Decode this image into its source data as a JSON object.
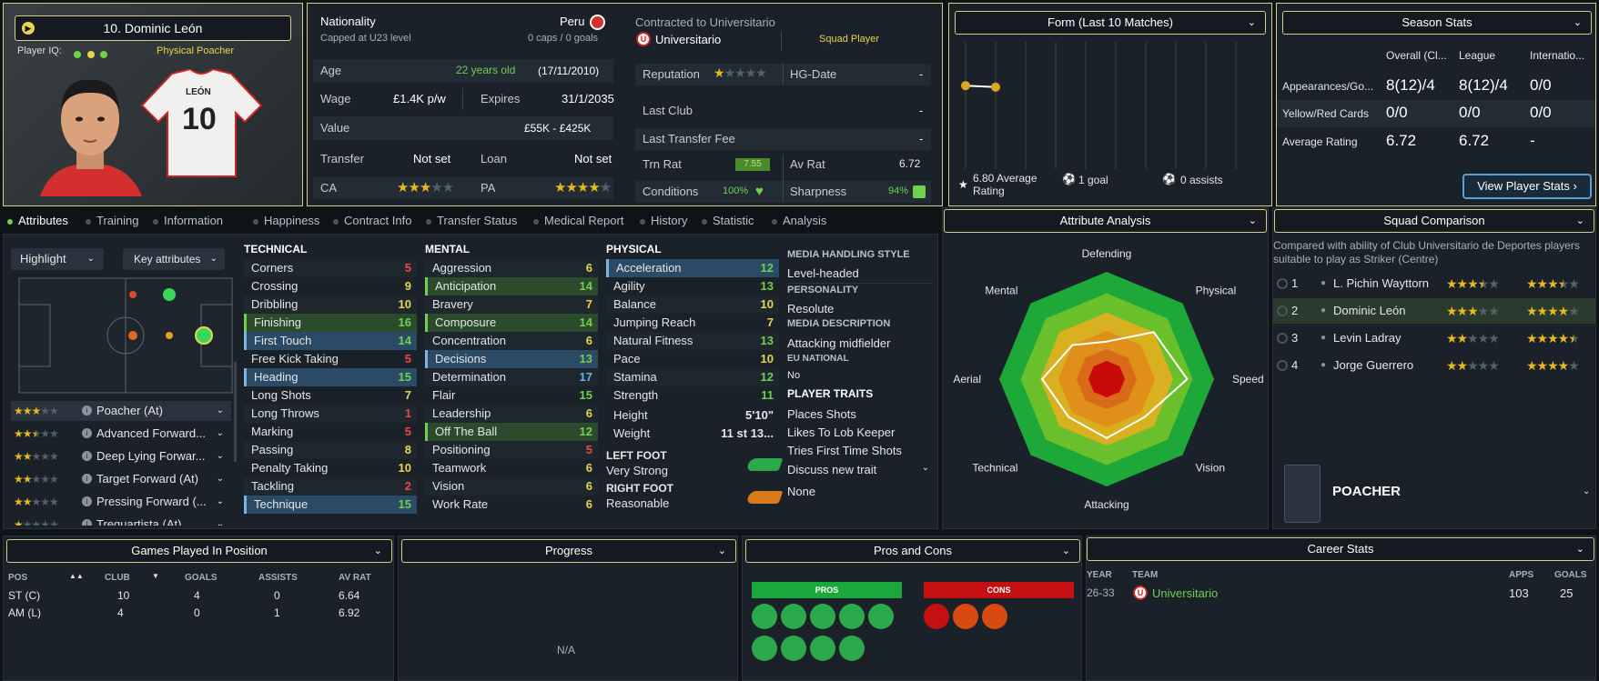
{
  "player": {
    "name": "10. Dominic León",
    "iq_label": "Player IQ:",
    "role_label": "Physical Poacher",
    "shirt_name": "LEÓN",
    "shirt_number": "10"
  },
  "info": {
    "nationality_label": "Nationality",
    "nationality": "Peru",
    "capped": "Capped at U23 level",
    "caps": "0 caps / 0 goals",
    "age_label": "Age",
    "age": "22 years old",
    "dob": "(17/11/2010)",
    "wage_label": "Wage",
    "wage": "£1.4K p/w",
    "expires_label": "Expires",
    "expires": "31/1/2035",
    "value_label": "Value",
    "value": "£55K - £425K",
    "transfer_label": "Transfer",
    "transfer": "Not set",
    "loan_label": "Loan",
    "loan": "Not set",
    "ca_label": "CA",
    "ca_stars": 3,
    "pa_label": "PA",
    "pa_stars": 4
  },
  "contract": {
    "contracted": "Contracted to Universitario",
    "club": "Universitario",
    "status": "Squad Player",
    "reputation_label": "Reputation",
    "reputation_stars": 1,
    "hg_label": "HG-Date",
    "hg": "-",
    "last_club_label": "Last Club",
    "last_club": "-",
    "last_fee_label": "Last Transfer Fee",
    "last_fee": "-",
    "trn_label": "Trn Rat",
    "trn": "7.55",
    "av_label": "Av Rat",
    "av": "6.72",
    "cond_label": "Conditions",
    "cond": "100%",
    "sharp_label": "Sharpness",
    "sharp": "94%"
  },
  "form": {
    "title": "Form (Last 10 Matches)",
    "avg": "6.80 Average Rating",
    "goals": "1 goal",
    "assists": "0 assists",
    "points": [
      6.9,
      6.8
    ]
  },
  "season": {
    "title": "Season Stats",
    "cols": [
      "Overall (Cl...",
      "League",
      "Internatio..."
    ],
    "rows": [
      {
        "label": "Appearances/Go...",
        "v": [
          "8(12)/4",
          "8(12)/4",
          "0/0"
        ]
      },
      {
        "label": "Yellow/Red Cards",
        "v": [
          "0/0",
          "0/0",
          "0/0"
        ]
      },
      {
        "label": "Average Rating",
        "v": [
          "6.72",
          "6.72",
          "-"
        ]
      }
    ],
    "button": "View Player Stats"
  },
  "tabs": [
    "Attributes",
    "Training",
    "Information",
    "Happiness",
    "Contract Info",
    "Transfer Status",
    "Medical Report",
    "History",
    "Statistic",
    "Analysis"
  ],
  "pitch": {
    "highlight": "Highlight",
    "key": "Key attributes"
  },
  "roles": [
    {
      "name": "Poacher (At)",
      "stars": 3
    },
    {
      "name": "Advanced Forward...",
      "stars": 2.5
    },
    {
      "name": "Deep Lying Forwar...",
      "stars": 2
    },
    {
      "name": "Target Forward (At)",
      "stars": 2
    },
    {
      "name": "Pressing Forward (...",
      "stars": 2
    },
    {
      "name": "Trequartista (At)",
      "stars": 1
    }
  ],
  "technical": {
    "title": "TECHNICAL",
    "items": [
      {
        "n": "Corners",
        "v": "5",
        "c": "#e84a4a"
      },
      {
        "n": "Crossing",
        "v": "9",
        "c": "#e8d44d"
      },
      {
        "n": "Dribbling",
        "v": "10",
        "c": "#e8d44d"
      },
      {
        "n": "Finishing",
        "v": "16",
        "c": "#6fd14f",
        "hl": "g"
      },
      {
        "n": "First Touch",
        "v": "14",
        "c": "#6fd14f",
        "hl": "b"
      },
      {
        "n": "Free Kick Taking",
        "v": "5",
        "c": "#e84a4a"
      },
      {
        "n": "Heading",
        "v": "15",
        "c": "#6fd14f",
        "hl": "b"
      },
      {
        "n": "Long Shots",
        "v": "7",
        "c": "#e8d44d"
      },
      {
        "n": "Long Throws",
        "v": "1",
        "c": "#e84a4a"
      },
      {
        "n": "Marking",
        "v": "5",
        "c": "#e84a4a"
      },
      {
        "n": "Passing",
        "v": "8",
        "c": "#e8d44d"
      },
      {
        "n": "Penalty Taking",
        "v": "10",
        "c": "#e8d44d"
      },
      {
        "n": "Tackling",
        "v": "2",
        "c": "#e84a4a"
      },
      {
        "n": "Technique",
        "v": "15",
        "c": "#6fd14f",
        "hl": "b"
      }
    ]
  },
  "mental": {
    "title": "MENTAL",
    "items": [
      {
        "n": "Aggression",
        "v": "6",
        "c": "#e8d44d"
      },
      {
        "n": "Anticipation",
        "v": "14",
        "c": "#6fd14f",
        "hl": "g"
      },
      {
        "n": "Bravery",
        "v": "7",
        "c": "#e8d44d"
      },
      {
        "n": "Composure",
        "v": "14",
        "c": "#6fd14f",
        "hl": "g"
      },
      {
        "n": "Concentration",
        "v": "6",
        "c": "#e8d44d"
      },
      {
        "n": "Decisions",
        "v": "13",
        "c": "#6fd14f",
        "hl": "b"
      },
      {
        "n": "Determination",
        "v": "17",
        "c": "#5ab8f0"
      },
      {
        "n": "Flair",
        "v": "15",
        "c": "#6fd14f"
      },
      {
        "n": "Leadership",
        "v": "6",
        "c": "#e8d44d"
      },
      {
        "n": "Off The Ball",
        "v": "12",
        "c": "#6fd14f",
        "hl": "g"
      },
      {
        "n": "Positioning",
        "v": "5",
        "c": "#e84a4a"
      },
      {
        "n": "Teamwork",
        "v": "6",
        "c": "#e8d44d"
      },
      {
        "n": "Vision",
        "v": "6",
        "c": "#e8d44d"
      },
      {
        "n": "Work Rate",
        "v": "6",
        "c": "#e8d44d"
      }
    ]
  },
  "physical": {
    "title": "PHYSICAL",
    "items": [
      {
        "n": "Acceleration",
        "v": "12",
        "c": "#6fd14f",
        "hl": "b"
      },
      {
        "n": "Agility",
        "v": "13",
        "c": "#6fd14f"
      },
      {
        "n": "Balance",
        "v": "10",
        "c": "#e8d44d"
      },
      {
        "n": "Jumping Reach",
        "v": "7",
        "c": "#e8d44d"
      },
      {
        "n": "Natural Fitness",
        "v": "13",
        "c": "#6fd14f"
      },
      {
        "n": "Pace",
        "v": "10",
        "c": "#e8d44d"
      },
      {
        "n": "Stamina",
        "v": "12",
        "c": "#6fd14f"
      },
      {
        "n": "Strength",
        "v": "11",
        "c": "#6fd14f"
      }
    ],
    "height_label": "Height",
    "height": "5'10\"",
    "weight_label": "Weight",
    "weight": "11 st 13...",
    "left_foot_label": "LEFT FOOT",
    "left_foot": "Very Strong",
    "right_foot_label": "RIGHT FOOT",
    "right_foot": "Reasonable"
  },
  "media": {
    "style_label": "MEDIA HANDLING STYLE",
    "style": "Level-headed",
    "personality_label": "PERSONALITY",
    "personality": "Resolute",
    "desc_label": "MEDIA DESCRIPTION",
    "desc": "Attacking midfielder",
    "eu_label": "EU NATIONAL",
    "eu": "No",
    "traits_label": "PLAYER TRAITS",
    "traits": [
      "Places Shots",
      "Likes To Lob Keeper",
      "Tries First Time Shots"
    ],
    "discuss": "Discuss new trait",
    "none": "None"
  },
  "analysis": {
    "title": "Attribute Analysis",
    "axes": [
      "Defending",
      "Physical",
      "Speed",
      "Vision",
      "Attacking",
      "Technical",
      "Aerial",
      "Mental"
    ],
    "values": [
      0.35,
      0.62,
      0.75,
      0.5,
      0.55,
      0.5,
      0.6,
      0.45
    ]
  },
  "squad": {
    "title": "Squad Comparison",
    "desc": "Compared with ability of Club Universitario de Deportes players suitable to play as Striker (Centre)",
    "rows": [
      {
        "r": "1",
        "n": "L. Pichin Wayttorn",
        "ca": 3.5,
        "pa": 3.5
      },
      {
        "r": "2",
        "n": "Dominic León",
        "ca": 3,
        "pa": 4
      },
      {
        "r": "3",
        "n": "Levin Ladray",
        "ca": 2,
        "pa": 4.5
      },
      {
        "r": "4",
        "n": "Jorge Guerrero",
        "ca": 2,
        "pa": 4
      }
    ],
    "role": "POACHER"
  },
  "games": {
    "title": "Games Played In Position",
    "cols": [
      "POS",
      "CLUB",
      "GOALS",
      "ASSISTS",
      "AV RAT"
    ],
    "rows": [
      [
        "ST (C)",
        "10",
        "4",
        "0",
        "6.64"
      ],
      [
        "AM (L)",
        "4",
        "0",
        "1",
        "6.92"
      ]
    ]
  },
  "progress": {
    "title": "Progress",
    "empty": "N/A"
  },
  "pros": {
    "title": "Pros and Cons",
    "pros_label": "PROS",
    "cons_label": "CONS"
  },
  "career": {
    "title": "Career Stats",
    "cols": [
      "YEAR",
      "TEAM",
      "APPS",
      "GOALS"
    ],
    "rows": [
      [
        "26-33",
        "Universitario",
        "103",
        "25"
      ]
    ]
  }
}
